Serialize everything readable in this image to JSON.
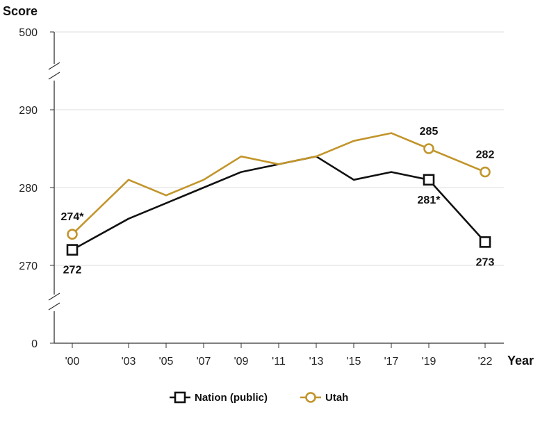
{
  "chart_data": {
    "type": "line",
    "ylabel": "Score",
    "xlabel": "Year",
    "x_categories": [
      "'00",
      "'03",
      "'05",
      "'07",
      "'09",
      "'11",
      "'13",
      "'15",
      "'17",
      "'19",
      "'22"
    ],
    "x_years": [
      2000,
      2003,
      2005,
      2007,
      2009,
      2011,
      2013,
      2015,
      2017,
      2019,
      2022
    ],
    "y_axis": {
      "broken": true,
      "ticks": [
        "500",
        "290",
        "280",
        "270",
        "0"
      ],
      "continuous_range": [
        265,
        295
      ]
    },
    "grid": true,
    "legend_position": "bottom",
    "series": [
      {
        "name": "Nation (public)",
        "color": "#111111",
        "marker": "square",
        "values": [
          272,
          276,
          278,
          280,
          282,
          283,
          284,
          281,
          282,
          281,
          273
        ],
        "marked_points": [
          0,
          9,
          10
        ]
      },
      {
        "name": "Utah",
        "color": "#c2952b",
        "marker": "circle",
        "values": [
          274,
          281,
          279,
          281,
          284,
          283,
          284,
          286,
          287,
          285,
          282
        ],
        "marked_points": [
          0,
          9,
          10
        ]
      }
    ],
    "annotations": [
      {
        "series": "Utah",
        "index": 0,
        "text": "274*",
        "placement": "above"
      },
      {
        "series": "Nation (public)",
        "index": 0,
        "text": "272",
        "placement": "below"
      },
      {
        "series": "Utah",
        "index": 9,
        "text": "285",
        "placement": "above"
      },
      {
        "series": "Nation (public)",
        "index": 9,
        "text": "281*",
        "placement": "below"
      },
      {
        "series": "Utah",
        "index": 10,
        "text": "282",
        "placement": "above"
      },
      {
        "series": "Nation (public)",
        "index": 10,
        "text": "273",
        "placement": "below"
      }
    ]
  }
}
